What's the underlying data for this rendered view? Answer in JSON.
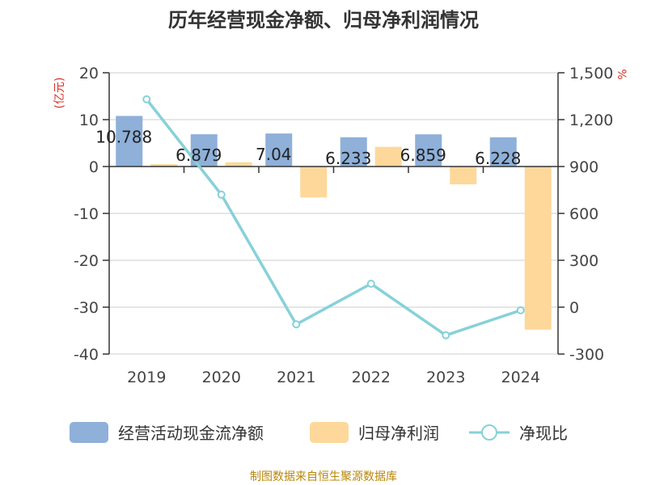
{
  "chart_data": {
    "type": "bar",
    "title": "历年经营现金净额、归母净利润情况",
    "categories": [
      "2019",
      "2020",
      "2021",
      "2022",
      "2023",
      "2024"
    ],
    "left_axis": {
      "unit_label": "(亿元)",
      "ylim": [
        -40,
        20
      ],
      "ticks": [
        "20",
        "10",
        "0",
        "-10",
        "-20",
        "-30",
        "-40"
      ],
      "tick_values": [
        20,
        10,
        0,
        -10,
        -20,
        -30,
        -40
      ]
    },
    "right_axis": {
      "unit_label": "%",
      "ylim": [
        -300,
        1500
      ],
      "ticks": [
        "1,500",
        "1,200",
        "900",
        "600",
        "300",
        "0",
        "-300"
      ],
      "tick_values": [
        1500,
        1200,
        900,
        600,
        300,
        0,
        -300
      ]
    },
    "series": [
      {
        "name": "经营活动现金流净额",
        "type": "bar",
        "axis": "left",
        "color": "#8eb0d9",
        "values": [
          10.788,
          6.879,
          7.04,
          6.233,
          6.859,
          6.228
        ],
        "labels": [
          "10.788",
          "6.879",
          "7.04",
          "6.233",
          "6.859",
          "6.228"
        ]
      },
      {
        "name": "归母净利润",
        "type": "bar",
        "axis": "left",
        "color": "#fdd89a",
        "values": [
          0.5,
          0.9,
          -6.6,
          4.2,
          -3.8,
          -34.8
        ]
      },
      {
        "name": "净现比",
        "type": "line",
        "axis": "right",
        "color": "#87d1d9",
        "values": [
          1330,
          720,
          -110,
          150,
          -180,
          -20
        ]
      }
    ],
    "grid": true,
    "legend_position": "bottom"
  },
  "footer": {
    "source": "制图数据来自恒生聚源数据库"
  }
}
